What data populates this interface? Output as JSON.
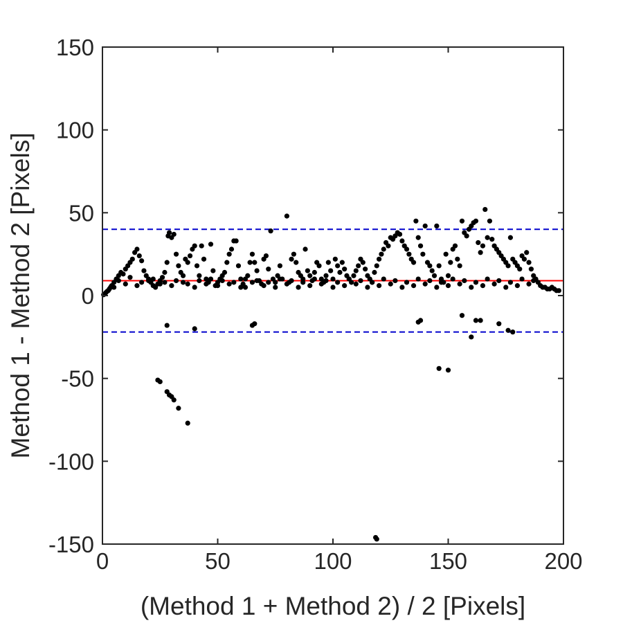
{
  "chart_data": {
    "type": "scatter",
    "title": "",
    "xlabel": "(Method 1 + Method 2) / 2 [Pixels]",
    "ylabel": "Method 1 - Method 2 [Pixels]",
    "xlim": [
      0,
      200
    ],
    "ylim": [
      -150,
      150
    ],
    "xticks": [
      0,
      50,
      100,
      150,
      200
    ],
    "xtick_labels": [
      "0",
      "50",
      "100",
      "150",
      "200"
    ],
    "yticks": [
      -150,
      -100,
      -50,
      0,
      50,
      100,
      150
    ],
    "ytick_labels": [
      "-150",
      "-100",
      "-50",
      "0",
      "50",
      "100",
      "150"
    ],
    "grid": false,
    "legend": "none",
    "reference_lines": [
      {
        "y": 9,
        "style": "solid",
        "color": "#ff0000"
      },
      {
        "y": 40,
        "style": "dashed",
        "color": "#0000cc"
      },
      {
        "y": -22,
        "style": "dashed",
        "color": "#0000cc"
      }
    ],
    "marker_color": "#000000",
    "series": [
      {
        "points": [
          [
            0.5,
            0.5
          ],
          [
            1,
            1
          ],
          [
            1.5,
            1.8
          ],
          [
            2,
            2.5
          ],
          [
            2.5,
            3
          ],
          [
            3,
            4
          ],
          [
            3.5,
            5
          ],
          [
            4,
            6
          ],
          [
            5,
            8
          ],
          [
            6,
            10
          ],
          [
            7,
            12
          ],
          [
            8,
            14
          ],
          [
            9,
            13
          ],
          [
            10,
            16
          ],
          [
            11,
            18
          ],
          [
            12,
            20
          ],
          [
            13,
            22
          ],
          [
            14,
            26
          ],
          [
            15,
            28
          ],
          [
            16,
            24
          ],
          [
            17,
            21
          ],
          [
            18,
            15
          ],
          [
            19,
            12
          ],
          [
            20,
            10
          ],
          [
            21,
            8
          ],
          [
            22,
            6
          ],
          [
            23,
            5
          ],
          [
            24,
            7
          ],
          [
            25,
            9
          ],
          [
            26,
            11
          ],
          [
            27,
            14
          ],
          [
            28,
            20
          ],
          [
            28.5,
            36
          ],
          [
            29,
            38
          ],
          [
            30,
            35
          ],
          [
            31,
            37
          ],
          [
            32,
            25
          ],
          [
            33,
            18
          ],
          [
            34,
            14
          ],
          [
            35,
            12
          ],
          [
            36,
            22
          ],
          [
            37,
            20
          ],
          [
            38,
            24
          ],
          [
            39,
            28
          ],
          [
            40,
            30
          ],
          [
            41,
            18
          ],
          [
            42,
            12
          ],
          [
            43,
            30
          ],
          [
            44,
            22
          ],
          [
            45,
            10
          ],
          [
            46,
            8
          ],
          [
            47,
            31
          ],
          [
            48,
            15
          ],
          [
            49,
            6
          ],
          [
            50,
            8
          ],
          [
            51,
            10
          ],
          [
            52,
            12
          ],
          [
            53,
            14
          ],
          [
            54,
            20
          ],
          [
            55,
            25
          ],
          [
            56,
            28
          ],
          [
            57,
            33
          ],
          [
            58,
            33
          ],
          [
            59,
            18
          ],
          [
            60,
            10
          ],
          [
            61,
            7
          ],
          [
            62,
            5
          ],
          [
            63,
            12
          ],
          [
            64,
            20
          ],
          [
            65,
            25
          ],
          [
            66,
            20
          ],
          [
            67,
            15
          ],
          [
            68,
            9
          ],
          [
            69,
            7
          ],
          [
            70,
            22
          ],
          [
            71,
            24
          ],
          [
            72,
            16
          ],
          [
            73,
            39
          ],
          [
            74,
            10
          ],
          [
            75,
            8
          ],
          [
            76,
            12
          ],
          [
            77,
            18
          ],
          [
            78,
            10
          ],
          [
            80,
            48
          ],
          [
            81,
            8
          ],
          [
            82,
            22
          ],
          [
            83,
            25
          ],
          [
            84,
            20
          ],
          [
            85,
            14
          ],
          [
            86,
            12
          ],
          [
            87,
            10
          ],
          [
            88,
            28
          ],
          [
            89,
            15
          ],
          [
            90,
            12
          ],
          [
            91,
            9
          ],
          [
            92,
            14
          ],
          [
            93,
            20
          ],
          [
            94,
            18
          ],
          [
            95,
            10
          ],
          [
            96,
            8
          ],
          [
            97,
            12
          ],
          [
            98,
            20
          ],
          [
            99,
            15
          ],
          [
            100,
            10
          ],
          [
            101,
            22
          ],
          [
            102,
            18
          ],
          [
            103,
            14
          ],
          [
            104,
            20
          ],
          [
            105,
            16
          ],
          [
            106,
            12
          ],
          [
            107,
            10
          ],
          [
            108,
            8
          ],
          [
            109,
            12
          ],
          [
            110,
            15
          ],
          [
            111,
            18
          ],
          [
            112,
            22
          ],
          [
            113,
            20
          ],
          [
            114,
            16
          ],
          [
            115,
            12
          ],
          [
            116,
            10
          ],
          [
            117,
            8
          ],
          [
            118,
            14
          ],
          [
            119,
            18
          ],
          [
            120,
            22
          ],
          [
            121,
            25
          ],
          [
            122,
            28
          ],
          [
            123,
            32
          ],
          [
            124,
            30
          ],
          [
            125,
            35
          ],
          [
            126,
            34
          ],
          [
            127,
            36
          ],
          [
            128,
            38
          ],
          [
            129,
            37
          ],
          [
            130,
            33
          ],
          [
            131,
            30
          ],
          [
            132,
            28
          ],
          [
            133,
            25
          ],
          [
            134,
            22
          ],
          [
            135,
            20
          ],
          [
            136,
            45
          ],
          [
            137,
            35
          ],
          [
            138,
            30
          ],
          [
            139,
            25
          ],
          [
            140,
            42
          ],
          [
            141,
            20
          ],
          [
            142,
            18
          ],
          [
            143,
            15
          ],
          [
            144,
            12
          ],
          [
            145,
            42
          ],
          [
            146,
            18
          ],
          [
            147,
            10
          ],
          [
            148,
            8
          ],
          [
            149,
            25
          ],
          [
            150,
            12
          ],
          [
            151,
            20
          ],
          [
            152,
            28
          ],
          [
            153,
            30
          ],
          [
            154,
            22
          ],
          [
            155,
            18
          ],
          [
            156,
            45
          ],
          [
            157,
            38
          ],
          [
            158,
            36
          ],
          [
            159,
            40
          ],
          [
            160,
            42
          ],
          [
            161,
            44
          ],
          [
            162,
            45
          ],
          [
            163,
            32
          ],
          [
            164,
            26
          ],
          [
            165,
            30
          ],
          [
            166,
            52
          ],
          [
            167,
            35
          ],
          [
            168,
            45
          ],
          [
            169,
            34
          ],
          [
            170,
            30
          ],
          [
            171,
            28
          ],
          [
            172,
            26
          ],
          [
            173,
            24
          ],
          [
            174,
            22
          ],
          [
            175,
            20
          ],
          [
            176,
            18
          ],
          [
            177,
            35
          ],
          [
            178,
            22
          ],
          [
            179,
            20
          ],
          [
            180,
            18
          ],
          [
            181,
            16
          ],
          [
            182,
            24
          ],
          [
            183,
            22
          ],
          [
            184,
            26
          ],
          [
            185,
            20
          ],
          [
            186,
            16
          ],
          [
            187,
            12
          ],
          [
            188,
            10
          ],
          [
            189,
            8
          ],
          [
            190,
            6
          ],
          [
            191,
            5
          ],
          [
            192,
            5
          ],
          [
            193,
            4
          ],
          [
            194,
            4
          ],
          [
            195,
            5
          ],
          [
            196,
            4
          ],
          [
            197,
            3
          ],
          [
            198,
            3
          ],
          [
            5,
            5
          ],
          [
            10,
            7
          ],
          [
            15,
            6
          ],
          [
            20,
            9
          ],
          [
            25,
            7
          ],
          [
            30,
            6
          ],
          [
            35,
            8
          ],
          [
            40,
            5
          ],
          [
            45,
            7
          ],
          [
            50,
            6
          ],
          [
            55,
            7
          ],
          [
            60,
            5
          ],
          [
            65,
            8
          ],
          [
            70,
            6
          ],
          [
            75,
            5
          ],
          [
            80,
            7
          ],
          [
            85,
            5
          ],
          [
            90,
            6
          ],
          [
            95,
            7
          ],
          [
            100,
            5
          ],
          [
            105,
            6
          ],
          [
            110,
            7
          ],
          [
            115,
            5
          ],
          [
            120,
            6
          ],
          [
            125,
            7
          ],
          [
            130,
            5
          ],
          [
            135,
            6
          ],
          [
            140,
            7
          ],
          [
            145,
            5
          ],
          [
            150,
            6
          ],
          [
            155,
            7
          ],
          [
            160,
            5
          ],
          [
            165,
            6
          ],
          [
            170,
            7
          ],
          [
            175,
            5
          ],
          [
            180,
            6
          ],
          [
            185,
            7
          ],
          [
            7,
            9
          ],
          [
            12,
            11
          ],
          [
            17,
            8
          ],
          [
            22,
            10
          ],
          [
            27,
            8
          ],
          [
            32,
            9
          ],
          [
            37,
            7
          ],
          [
            42,
            9
          ],
          [
            47,
            10
          ],
          [
            52,
            9
          ],
          [
            57,
            8
          ],
          [
            62,
            10
          ],
          [
            67,
            9
          ],
          [
            72,
            8
          ],
          [
            77,
            10
          ],
          [
            82,
            9
          ],
          [
            87,
            8
          ],
          [
            92,
            10
          ],
          [
            97,
            9
          ],
          [
            102,
            8
          ],
          [
            107,
            10
          ],
          [
            112,
            9
          ],
          [
            117,
            8
          ],
          [
            122,
            10
          ],
          [
            127,
            9
          ],
          [
            132,
            8
          ],
          [
            137,
            10
          ],
          [
            142,
            9
          ],
          [
            147,
            8
          ],
          [
            152,
            10
          ],
          [
            157,
            9
          ],
          [
            162,
            8
          ],
          [
            167,
            10
          ],
          [
            172,
            9
          ],
          [
            177,
            8
          ],
          [
            182,
            10
          ],
          [
            187,
            9
          ],
          [
            28,
            -18
          ],
          [
            40,
            -20
          ],
          [
            65,
            -18
          ],
          [
            66,
            -17
          ],
          [
            137,
            -16
          ],
          [
            138,
            -15
          ],
          [
            156,
            -12
          ],
          [
            160,
            -25
          ],
          [
            162,
            -15
          ],
          [
            164,
            -15
          ],
          [
            172,
            -17
          ],
          [
            176,
            -21
          ],
          [
            178,
            -22
          ],
          [
            24,
            -51
          ],
          [
            25,
            -52
          ],
          [
            28,
            -58
          ],
          [
            29,
            -60
          ],
          [
            30,
            -61
          ],
          [
            31,
            -63
          ],
          [
            33,
            -68
          ],
          [
            37,
            -77
          ],
          [
            146,
            -44
          ],
          [
            150,
            -45
          ],
          [
            118.5,
            -146
          ],
          [
            119,
            -147
          ]
        ]
      }
    ]
  }
}
